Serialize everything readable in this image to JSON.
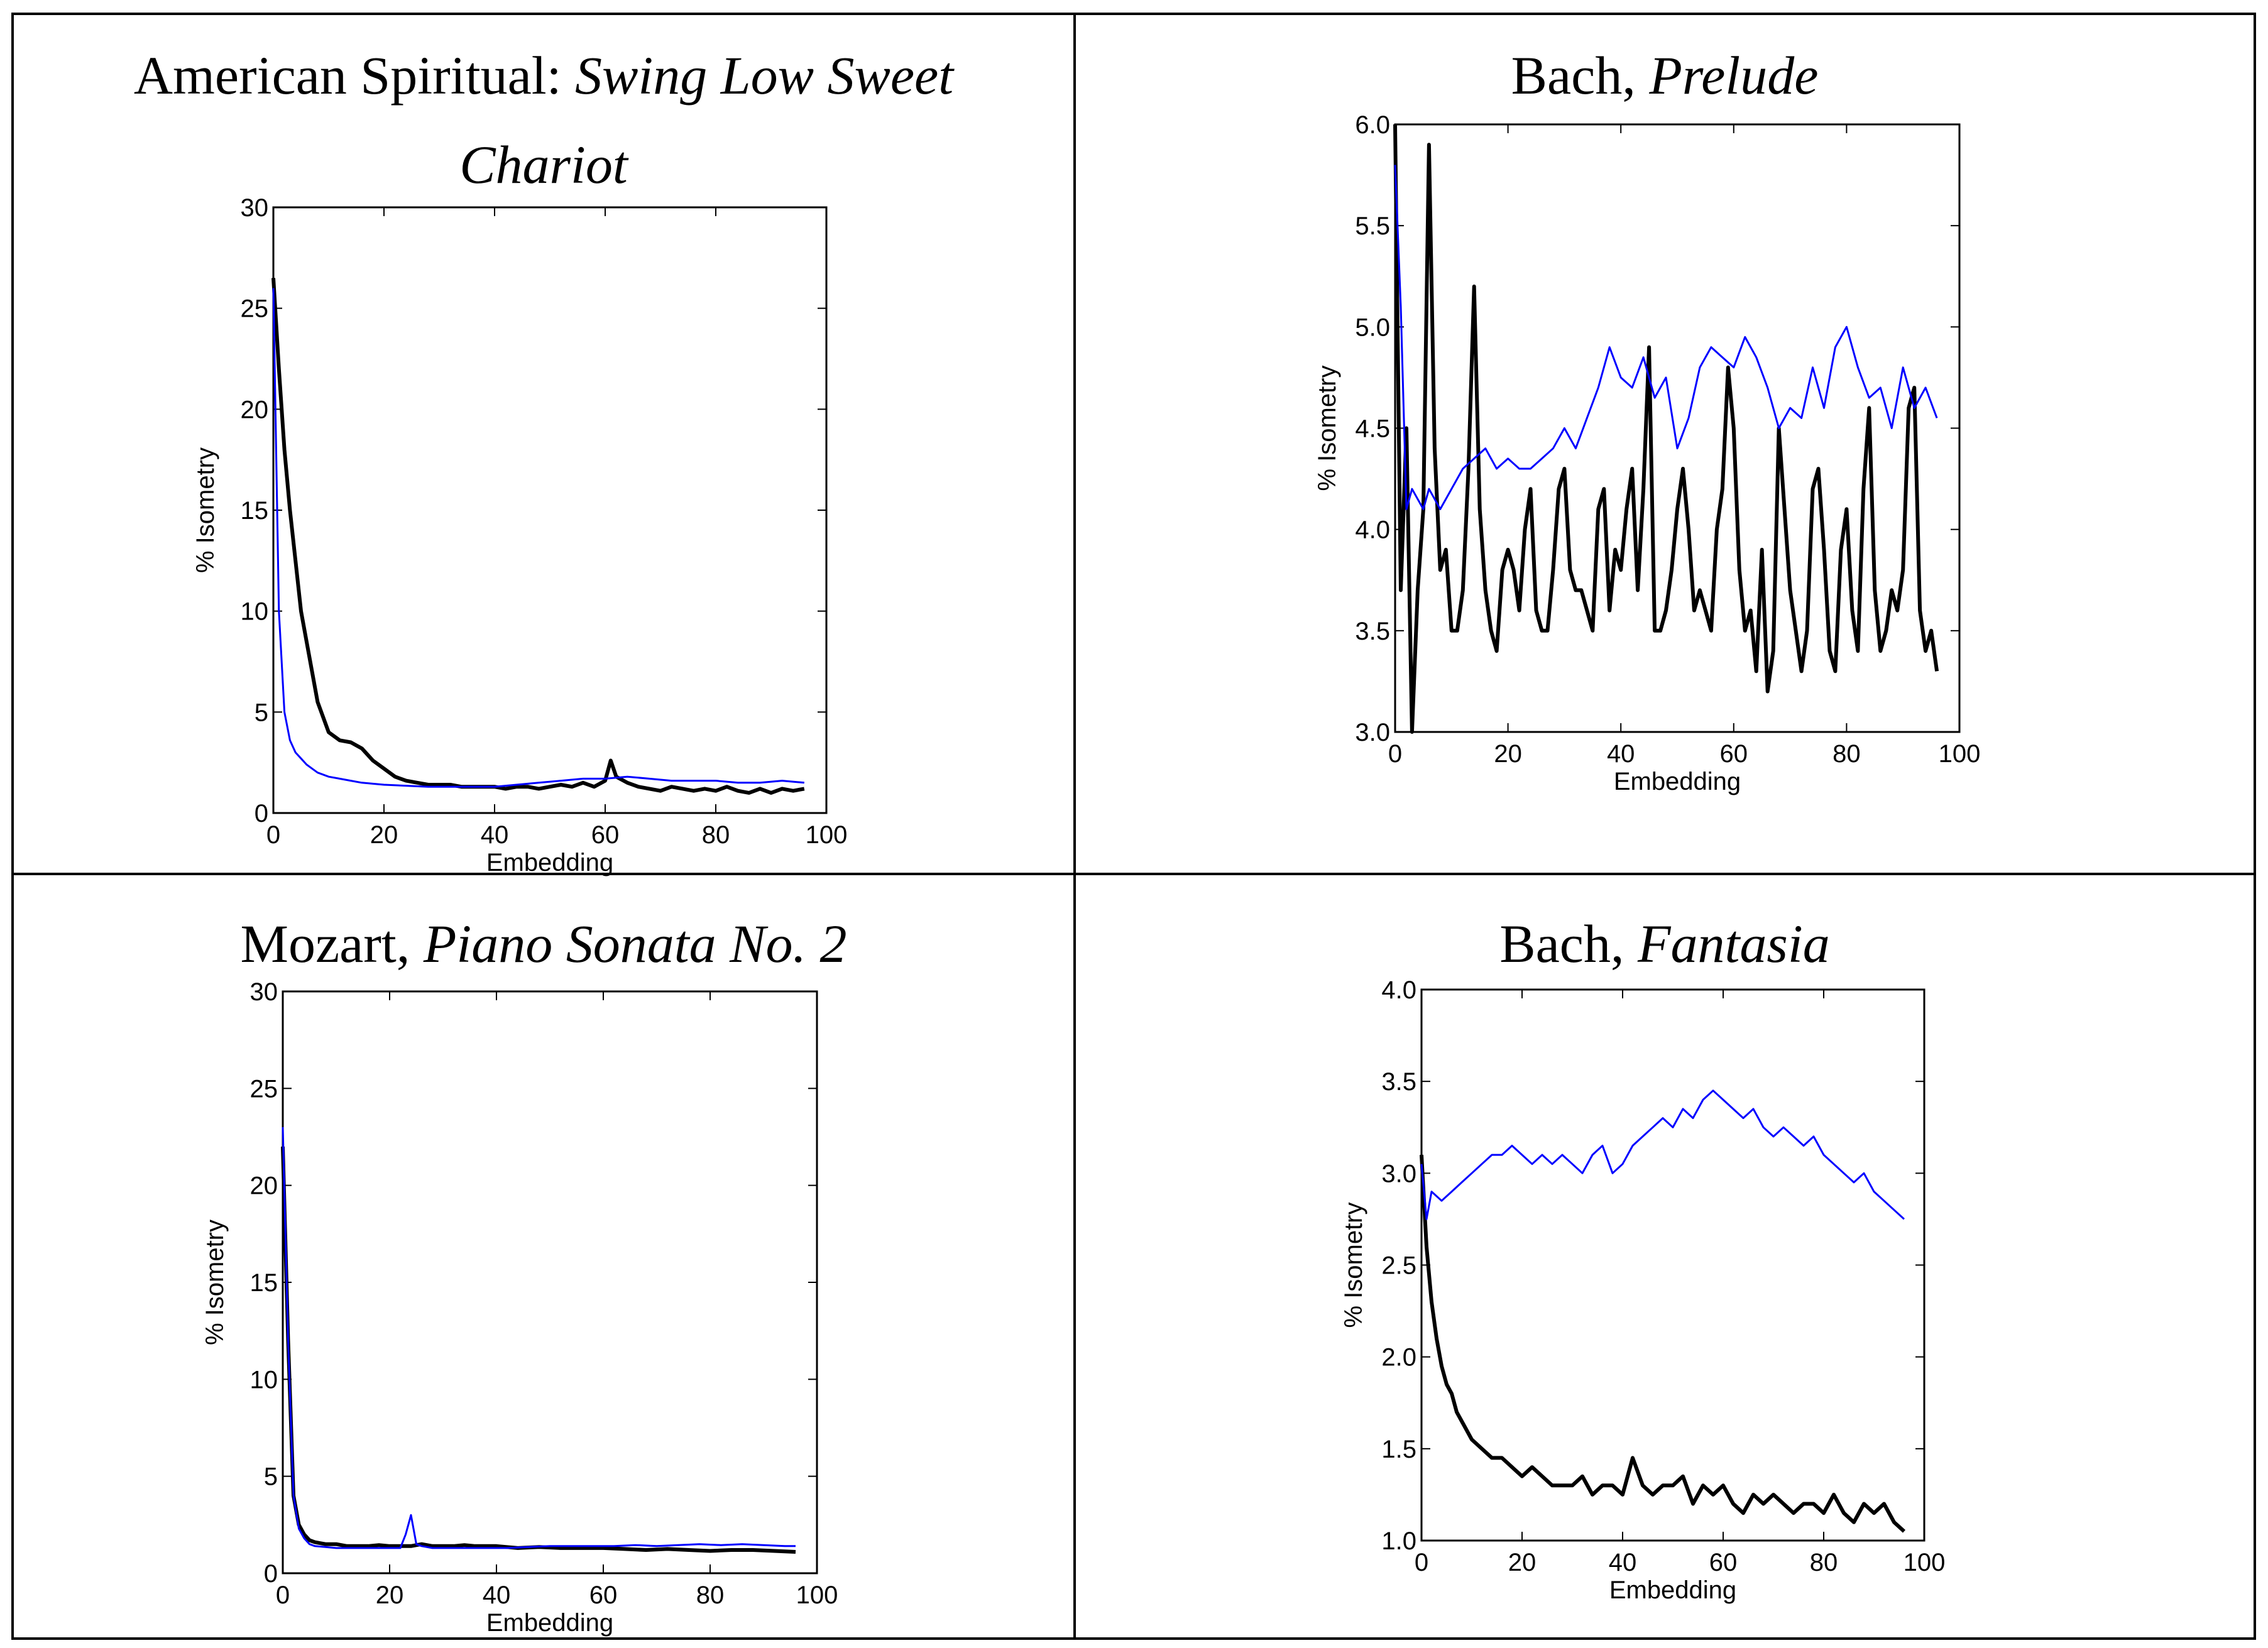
{
  "chart_data": [
    {
      "type": "line",
      "title": "American Spiritual:",
      "title_italic_line1": "Swing Low Sweet",
      "title_italic_line2": "Chariot",
      "xlabel": "Embedding",
      "ylabel": "% Isometry",
      "xlim": [
        0,
        100
      ],
      "ylim": [
        0,
        30
      ],
      "xticks": [
        "0",
        "20",
        "40",
        "60",
        "80",
        "100"
      ],
      "yticks": [
        "0",
        "5",
        "10",
        "15",
        "20",
        "25",
        "30"
      ],
      "series": [
        {
          "name": "black",
          "color": "#000000",
          "x": [
            0,
            1,
            2,
            3,
            4,
            5,
            6,
            7,
            8,
            10,
            12,
            14,
            16,
            18,
            20,
            22,
            24,
            26,
            28,
            30,
            32,
            34,
            36,
            38,
            40,
            42,
            44,
            46,
            48,
            50,
            52,
            54,
            56,
            58,
            60,
            61,
            62,
            64,
            66,
            68,
            70,
            72,
            74,
            76,
            78,
            80,
            82,
            84,
            86,
            88,
            90,
            92,
            94,
            96
          ],
          "y": [
            26.5,
            22,
            18,
            15,
            12.5,
            10,
            8.5,
            7,
            5.5,
            4,
            3.6,
            3.5,
            3.2,
            2.6,
            2.2,
            1.8,
            1.6,
            1.5,
            1.4,
            1.4,
            1.4,
            1.3,
            1.3,
            1.3,
            1.3,
            1.2,
            1.3,
            1.3,
            1.2,
            1.3,
            1.4,
            1.3,
            1.5,
            1.3,
            1.6,
            2.6,
            1.8,
            1.5,
            1.3,
            1.2,
            1.1,
            1.3,
            1.2,
            1.1,
            1.2,
            1.1,
            1.3,
            1.1,
            1.0,
            1.2,
            1.0,
            1.2,
            1.1,
            1.2
          ]
        },
        {
          "name": "blue",
          "color": "#0000ff",
          "x": [
            0,
            1,
            2,
            3,
            4,
            5,
            6,
            7,
            8,
            10,
            12,
            14,
            16,
            18,
            20,
            24,
            28,
            32,
            36,
            40,
            44,
            48,
            52,
            56,
            60,
            64,
            68,
            72,
            76,
            80,
            84,
            88,
            92,
            96
          ],
          "y": [
            26,
            10,
            5,
            3.6,
            3,
            2.7,
            2.4,
            2.2,
            2.0,
            1.8,
            1.7,
            1.6,
            1.5,
            1.45,
            1.4,
            1.35,
            1.3,
            1.3,
            1.3,
            1.3,
            1.4,
            1.5,
            1.6,
            1.7,
            1.7,
            1.8,
            1.7,
            1.6,
            1.6,
            1.6,
            1.5,
            1.5,
            1.6,
            1.5
          ]
        }
      ]
    },
    {
      "type": "line",
      "title": "Bach,",
      "title_italic_line1": "Prelude",
      "xlabel": "Embedding",
      "ylabel": "% Isometry",
      "xlim": [
        0,
        100
      ],
      "ylim": [
        3.0,
        6.0
      ],
      "xticks": [
        "0",
        "20",
        "40",
        "60",
        "80",
        "100"
      ],
      "yticks": [
        "3.0",
        "3.5",
        "4.0",
        "4.5",
        "5.0",
        "5.5",
        "6.0"
      ],
      "series": [
        {
          "name": "black",
          "color": "#000000",
          "x": [
            0,
            1,
            2,
            3,
            4,
            5,
            6,
            7,
            8,
            9,
            10,
            11,
            12,
            13,
            14,
            15,
            16,
            17,
            18,
            19,
            20,
            21,
            22,
            23,
            24,
            25,
            26,
            27,
            28,
            29,
            30,
            31,
            32,
            33,
            34,
            35,
            36,
            37,
            38,
            39,
            40,
            41,
            42,
            43,
            44,
            45,
            46,
            47,
            48,
            49,
            50,
            51,
            52,
            53,
            54,
            55,
            56,
            57,
            58,
            59,
            60,
            61,
            62,
            63,
            64,
            65,
            66,
            67,
            68,
            69,
            70,
            71,
            72,
            73,
            74,
            75,
            76,
            77,
            78,
            79,
            80,
            81,
            82,
            83,
            84,
            85,
            86,
            87,
            88,
            89,
            90,
            91,
            92,
            93,
            94,
            95,
            96
          ],
          "y": [
            6.0,
            3.7,
            4.5,
            3.0,
            3.7,
            4.1,
            5.9,
            4.4,
            3.8,
            3.9,
            3.5,
            3.5,
            3.7,
            4.3,
            5.2,
            4.1,
            3.7,
            3.5,
            3.4,
            3.8,
            3.9,
            3.8,
            3.6,
            4.0,
            4.2,
            3.6,
            3.5,
            3.5,
            3.8,
            4.2,
            4.3,
            3.8,
            3.7,
            3.7,
            3.6,
            3.5,
            4.1,
            4.2,
            3.6,
            3.9,
            3.8,
            4.1,
            4.3,
            3.7,
            4.2,
            4.9,
            3.5,
            3.5,
            3.6,
            3.8,
            4.1,
            4.3,
            4.0,
            3.6,
            3.7,
            3.6,
            3.5,
            4.0,
            4.2,
            4.8,
            4.5,
            3.8,
            3.5,
            3.6,
            3.3,
            3.9,
            3.2,
            3.4,
            4.5,
            4.1,
            3.7,
            3.5,
            3.3,
            3.5,
            4.2,
            4.3,
            3.9,
            3.4,
            3.3,
            3.9,
            4.1,
            3.6,
            3.4,
            4.2,
            4.6,
            3.7,
            3.4,
            3.5,
            3.7,
            3.6,
            3.8,
            4.6,
            4.7,
            3.6,
            3.4,
            3.5,
            3.3
          ]
        },
        {
          "name": "blue",
          "color": "#0000ff",
          "x": [
            0,
            1,
            2,
            3,
            4,
            5,
            6,
            7,
            8,
            10,
            12,
            14,
            16,
            18,
            20,
            22,
            24,
            26,
            28,
            30,
            32,
            34,
            36,
            38,
            40,
            42,
            44,
            46,
            48,
            50,
            52,
            54,
            56,
            58,
            60,
            62,
            64,
            66,
            68,
            70,
            72,
            74,
            76,
            78,
            80,
            82,
            84,
            86,
            88,
            90,
            92,
            94,
            96
          ],
          "y": [
            5.8,
            5.1,
            4.1,
            4.2,
            4.15,
            4.1,
            4.2,
            4.15,
            4.1,
            4.2,
            4.3,
            4.35,
            4.4,
            4.3,
            4.35,
            4.3,
            4.3,
            4.35,
            4.4,
            4.5,
            4.4,
            4.55,
            4.7,
            4.9,
            4.75,
            4.7,
            4.85,
            4.65,
            4.75,
            4.4,
            4.55,
            4.8,
            4.9,
            4.85,
            4.8,
            4.95,
            4.85,
            4.7,
            4.5,
            4.6,
            4.55,
            4.8,
            4.6,
            4.9,
            5.0,
            4.8,
            4.65,
            4.7,
            4.5,
            4.8,
            4.6,
            4.7,
            4.55
          ]
        }
      ]
    },
    {
      "type": "line",
      "title": "Mozart,",
      "title_italic_line1": "Piano Sonata No. 2",
      "xlabel": "Embedding",
      "ylabel": "% Isometry",
      "xlim": [
        0,
        100
      ],
      "ylim": [
        0,
        30
      ],
      "xticks": [
        "0",
        "20",
        "40",
        "60",
        "80",
        "100"
      ],
      "yticks": [
        "0",
        "5",
        "10",
        "15",
        "20",
        "25",
        "30"
      ],
      "series": [
        {
          "name": "black",
          "color": "#000000",
          "x": [
            0,
            1,
            2,
            3,
            4,
            5,
            6,
            8,
            10,
            12,
            14,
            16,
            18,
            20,
            22,
            24,
            26,
            28,
            30,
            32,
            34,
            36,
            38,
            40,
            44,
            48,
            52,
            56,
            60,
            64,
            68,
            72,
            76,
            80,
            84,
            88,
            92,
            96
          ],
          "y": [
            22,
            12,
            4,
            2.5,
            2.0,
            1.7,
            1.6,
            1.5,
            1.5,
            1.4,
            1.4,
            1.4,
            1.45,
            1.4,
            1.4,
            1.4,
            1.5,
            1.4,
            1.4,
            1.4,
            1.45,
            1.4,
            1.4,
            1.4,
            1.3,
            1.35,
            1.3,
            1.3,
            1.3,
            1.25,
            1.2,
            1.25,
            1.2,
            1.15,
            1.2,
            1.2,
            1.15,
            1.1
          ]
        },
        {
          "name": "blue",
          "color": "#0000ff",
          "x": [
            0,
            1,
            2,
            3,
            4,
            5,
            6,
            8,
            10,
            12,
            14,
            16,
            18,
            20,
            22,
            23,
            24,
            25,
            26,
            28,
            30,
            34,
            38,
            42,
            46,
            50,
            54,
            58,
            62,
            66,
            70,
            74,
            78,
            82,
            86,
            90,
            94,
            96
          ],
          "y": [
            23,
            12,
            4,
            2.3,
            1.8,
            1.5,
            1.4,
            1.35,
            1.3,
            1.3,
            1.3,
            1.3,
            1.3,
            1.3,
            1.3,
            2.0,
            3.0,
            1.5,
            1.4,
            1.3,
            1.3,
            1.3,
            1.3,
            1.3,
            1.35,
            1.4,
            1.4,
            1.4,
            1.4,
            1.45,
            1.4,
            1.45,
            1.5,
            1.45,
            1.5,
            1.45,
            1.4,
            1.4
          ]
        }
      ]
    },
    {
      "type": "line",
      "title": "Bach,",
      "title_italic_line1": "Fantasia",
      "xlabel": "Embedding",
      "ylabel": "% Isometry",
      "xlim": [
        0,
        100
      ],
      "ylim": [
        1.0,
        4.0
      ],
      "xticks": [
        "0",
        "20",
        "40",
        "60",
        "80",
        "100"
      ],
      "yticks": [
        "1.0",
        "1.5",
        "2.0",
        "2.5",
        "3.0",
        "3.5",
        "4.0"
      ],
      "series": [
        {
          "name": "black",
          "color": "#000000",
          "x": [
            0,
            1,
            2,
            3,
            4,
            5,
            6,
            7,
            8,
            9,
            10,
            12,
            14,
            16,
            18,
            20,
            22,
            24,
            26,
            28,
            30,
            32,
            34,
            36,
            38,
            40,
            42,
            44,
            46,
            48,
            50,
            52,
            54,
            56,
            58,
            60,
            62,
            64,
            66,
            68,
            70,
            72,
            74,
            76,
            78,
            80,
            82,
            84,
            86,
            88,
            90,
            92,
            94,
            96
          ],
          "y": [
            3.1,
            2.6,
            2.3,
            2.1,
            1.95,
            1.85,
            1.8,
            1.7,
            1.65,
            1.6,
            1.55,
            1.5,
            1.45,
            1.45,
            1.4,
            1.35,
            1.4,
            1.35,
            1.3,
            1.3,
            1.3,
            1.35,
            1.25,
            1.3,
            1.3,
            1.25,
            1.45,
            1.3,
            1.25,
            1.3,
            1.3,
            1.35,
            1.2,
            1.3,
            1.25,
            1.3,
            1.2,
            1.15,
            1.25,
            1.2,
            1.25,
            1.2,
            1.15,
            1.2,
            1.2,
            1.15,
            1.25,
            1.15,
            1.1,
            1.2,
            1.15,
            1.2,
            1.1,
            1.05
          ]
        },
        {
          "name": "blue",
          "color": "#0000ff",
          "x": [
            0,
            1,
            2,
            4,
            6,
            8,
            10,
            12,
            14,
            16,
            18,
            20,
            22,
            24,
            26,
            28,
            30,
            32,
            34,
            36,
            38,
            40,
            42,
            44,
            46,
            48,
            50,
            52,
            54,
            56,
            58,
            60,
            62,
            64,
            66,
            68,
            70,
            72,
            74,
            76,
            78,
            80,
            82,
            84,
            86,
            88,
            90,
            92,
            94,
            96
          ],
          "y": [
            3.05,
            2.75,
            2.9,
            2.85,
            2.9,
            2.95,
            3.0,
            3.05,
            3.1,
            3.1,
            3.15,
            3.1,
            3.05,
            3.1,
            3.05,
            3.1,
            3.05,
            3.0,
            3.1,
            3.15,
            3.0,
            3.05,
            3.15,
            3.2,
            3.25,
            3.3,
            3.25,
            3.35,
            3.3,
            3.4,
            3.45,
            3.4,
            3.35,
            3.3,
            3.35,
            3.25,
            3.2,
            3.25,
            3.2,
            3.15,
            3.2,
            3.1,
            3.05,
            3.0,
            2.95,
            3.0,
            2.9,
            2.85,
            2.8,
            2.75
          ]
        }
      ]
    }
  ]
}
